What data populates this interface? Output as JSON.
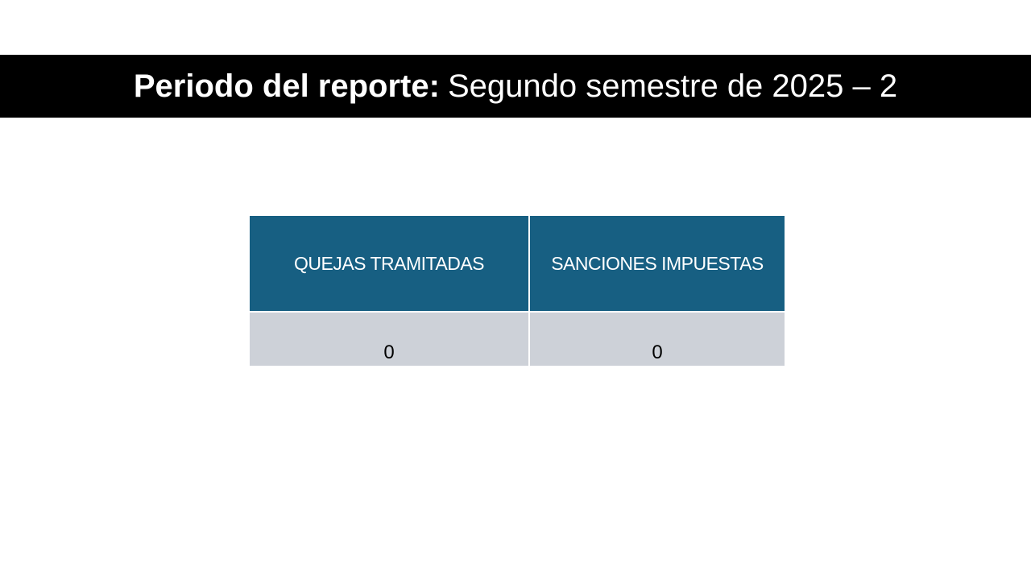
{
  "header": {
    "label": "Periodo del reporte:",
    "value": "Segundo semestre de 2025 – 2"
  },
  "table": {
    "columns": [
      "QUEJAS TRAMITADAS",
      "SANCIONES IMPUESTAS"
    ],
    "rows": [
      [
        0,
        0
      ]
    ]
  }
}
